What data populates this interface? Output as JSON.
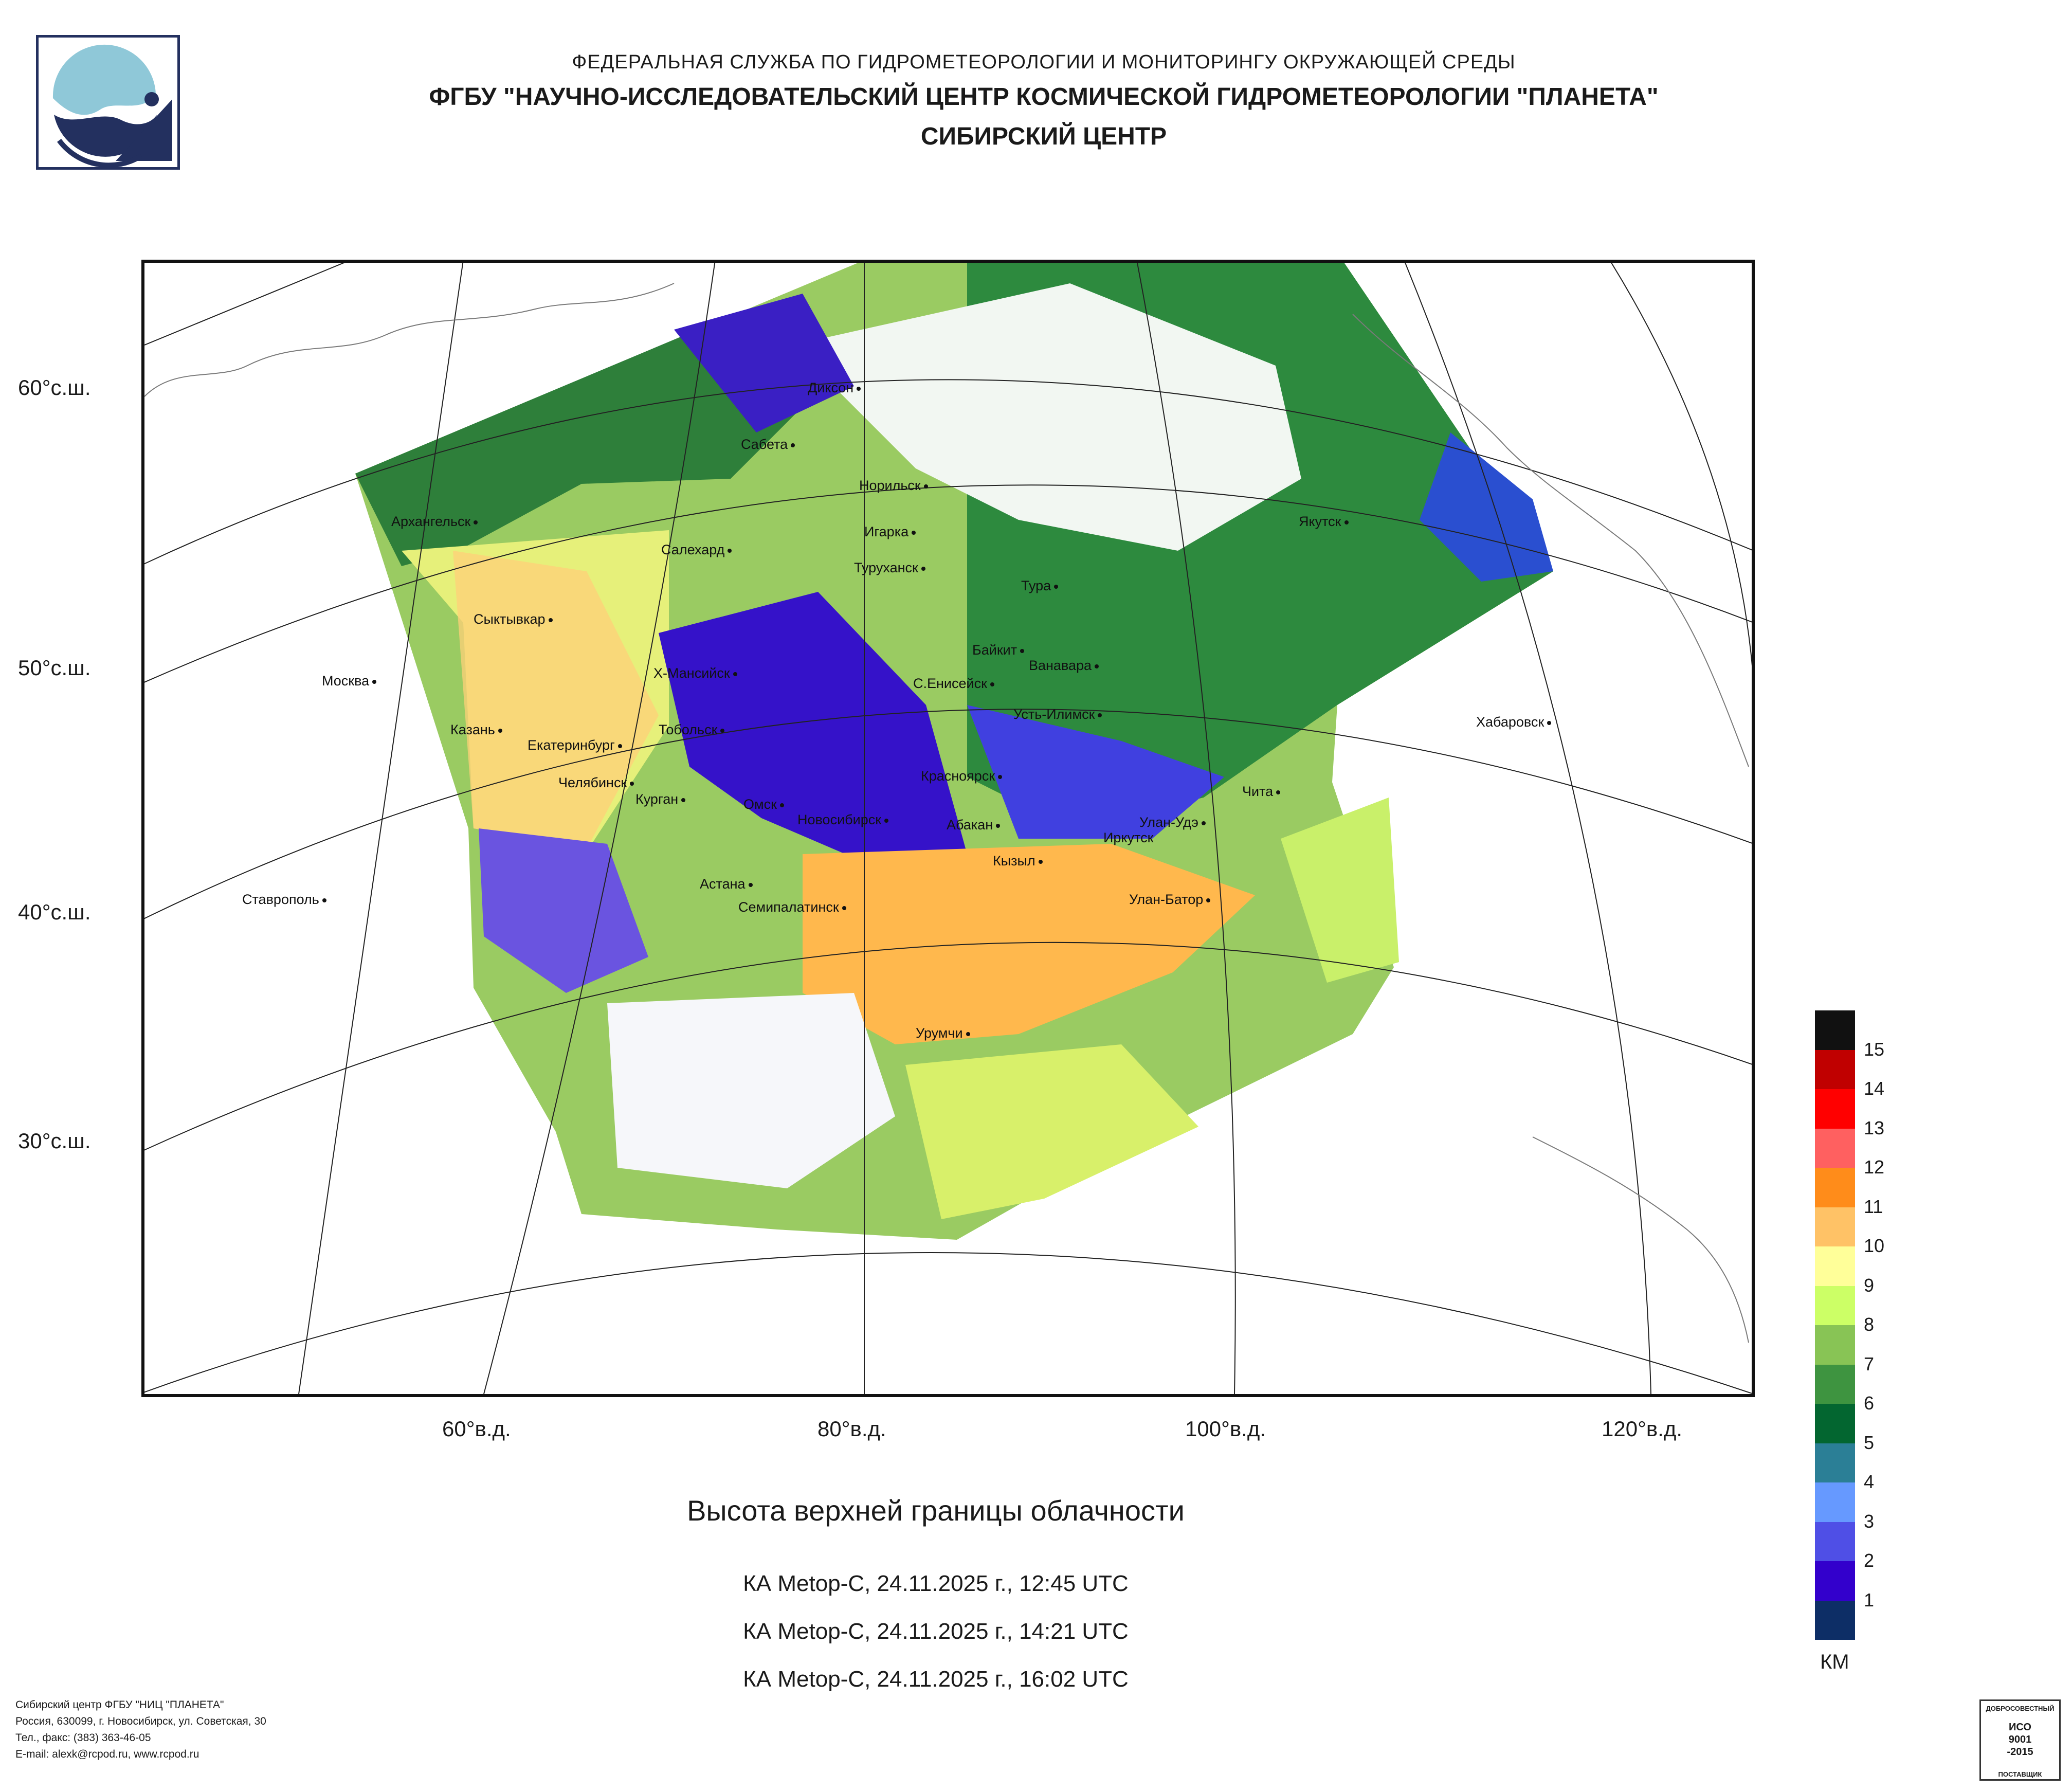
{
  "header": {
    "agency": "ФЕДЕРАЛЬНАЯ СЛУЖБА ПО ГИДРОМЕТЕОРОЛОГИИ И МОНИТОРИНГУ ОКРУЖАЮЩЕЙ СРЕДЫ",
    "institution": "ФГБУ \"НАУЧНО-ИССЛЕДОВАТЕЛЬСКИЙ ЦЕНТР КОСМИЧЕСКОЙ ГИДРОМЕТЕОРОЛОГИИ \"ПЛАНЕТА\"",
    "center": "СИБИРСКИЙ ЦЕНТР"
  },
  "map": {
    "latitude_labels": [
      "60°с.ш.",
      "50°с.ш.",
      "40°с.ш.",
      "30°с.ш."
    ],
    "longitude_labels": [
      "60°в.д.",
      "80°в.д.",
      "100°в.д.",
      "120°в.д."
    ],
    "cities": [
      "Диксон",
      "Сабета",
      "Норильск",
      "Архангельск",
      "Игарка",
      "Салехард",
      "Туруханск",
      "Якутск",
      "Тура",
      "Сыктывкар",
      "Байкит",
      "Ванавара",
      "Москва",
      "Х-Мансийск",
      "С.Енисейск",
      "Усть-Илимск",
      "Хабаровск",
      "Казань",
      "Тобольск",
      "Екатеринбург",
      "Красноярск",
      "Челябинск",
      "Курган",
      "Чита",
      "Омск",
      "Новосибирск",
      "Абакан",
      "Улан-Удэ",
      "Иркутск",
      "Кызыл",
      "Астана",
      "Ставрополь",
      "Улан-Батор",
      "Семипалатинск",
      "Урумчи"
    ]
  },
  "title": "Высота верхней границы облачности",
  "passes": [
    "КА Metop-C, 24.11.2025 г., 12:45 UTC",
    "КА Metop-C, 24.11.2025 г., 14:21 UTC",
    "КА Metop-C, 24.11.2025 г., 16:02 UTC"
  ],
  "legend": {
    "unit": "КМ",
    "labels": [
      "15",
      "14",
      "13",
      "12",
      "11",
      "10",
      "9",
      "8",
      "7",
      "6",
      "5",
      "4",
      "3",
      "2",
      "1"
    ],
    "colors": [
      "#111111",
      "#c00000",
      "#ff0000",
      "#ff6060",
      "#ff8c1a",
      "#ffc266",
      "#ffff99",
      "#ccff66",
      "#88c455",
      "#3e9440",
      "#036630",
      "#2b7f96",
      "#6699ff",
      "#4f4fe6",
      "#3300cc",
      "#0d2e66"
    ]
  },
  "footer": {
    "line1": "Сибирский центр ФГБУ \"НИЦ \"ПЛАНЕТА\"",
    "line2": "Россия, 630099, г. Новосибирск, ул. Советская, 30",
    "line3": "Тел., факс: (383) 363-46-05",
    "line4": "E-mail: alexk@rcpod.ru, www.rcpod.ru"
  },
  "certificate": {
    "top": "ДОБРОСОВЕСТНЫЙ",
    "line1": "ИСО",
    "line2": "9001",
    "line3": "-2015",
    "bottom": "ПОСТАВЩИК"
  }
}
